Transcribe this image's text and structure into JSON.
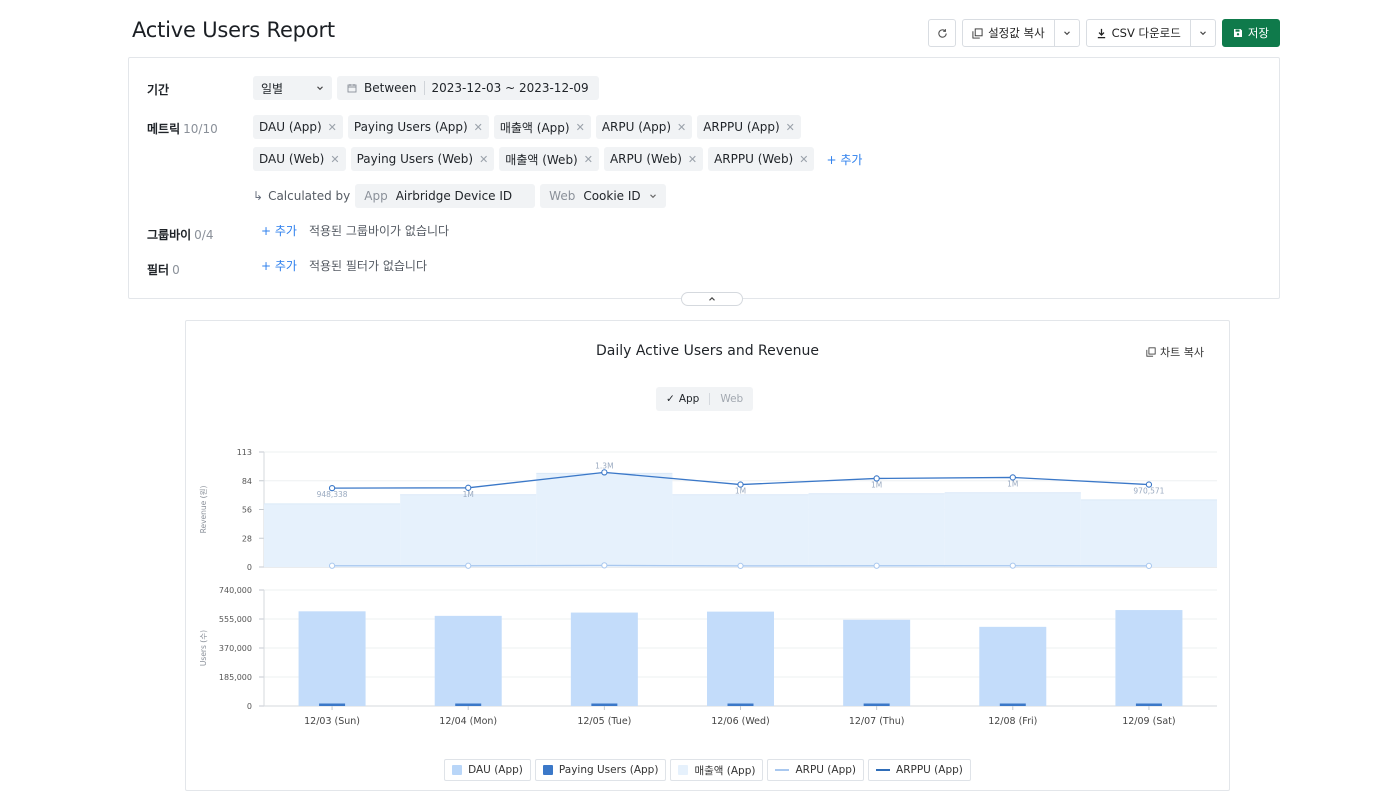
{
  "page": {
    "title": "Active Users Report"
  },
  "toolbar": {
    "refresh_icon": "refresh-icon",
    "copy_settings_label": "설정값 복사",
    "csv_label": "CSV 다운로드",
    "save_label": "저장",
    "save_color": "#0f7a4b"
  },
  "config": {
    "period": {
      "label": "기간",
      "granularity": "일별",
      "range_mode": "Between",
      "range": "2023-12-03 ~ 2023-12-09"
    },
    "metrics": {
      "label": "메트릭",
      "count": "10/10",
      "row1": [
        "DAU (App)",
        "Paying Users (App)",
        "매출액 (App)",
        "ARPU (App)",
        "ARPPU (App)"
      ],
      "row2": [
        "DAU (Web)",
        "Paying Users (Web)",
        "매출액 (Web)",
        "ARPU (Web)",
        "ARPPU (Web)"
      ],
      "add_label": "+ 추가",
      "calculated_by_label": "Calculated by",
      "app_key": "App",
      "app_value": "Airbridge Device ID",
      "web_key": "Web",
      "web_value": "Cookie ID"
    },
    "groupby": {
      "label": "그룹바이",
      "count": "0/4",
      "add_label": "+ 추가",
      "empty_text": "적용된 그룹바이가 없습니다"
    },
    "filter": {
      "label": "필터",
      "count": "0",
      "add_label": "+ 추가",
      "empty_text": "적용된 필터가 없습니다"
    }
  },
  "chart_card": {
    "copy_label": "차트 복사",
    "toggle": {
      "on": "App",
      "off": "Web"
    }
  },
  "chart_data": {
    "type": "bar",
    "title": "Daily Active Users and Revenue",
    "categories": [
      "12/03 (Sun)",
      "12/04 (Mon)",
      "12/05 (Tue)",
      "12/06 (Wed)",
      "12/07 (Thu)",
      "12/08 (Fri)",
      "12/09 (Sat)"
    ],
    "top_panel": {
      "ylabel": "Revenue (원)",
      "ylim": [
        0,
        113
      ],
      "yticks": [
        "0",
        "28",
        "56",
        "84",
        "113"
      ],
      "series": [
        {
          "name": "매출액 (App)",
          "kind": "area-bar",
          "color": "#e6f1fc",
          "values": [
            62,
            71,
            92,
            71,
            72,
            73,
            66
          ]
        },
        {
          "name": "ARPPU (App)",
          "kind": "line",
          "color": "#3b78c8",
          "values": [
            77.5,
            77.8,
            93,
            81,
            87,
            88,
            81
          ],
          "labels": [
            "948,338",
            "1M",
            "1.3M",
            "1M",
            "1M",
            "1M",
            "970,571"
          ]
        },
        {
          "name": "ARPU (App)",
          "kind": "line",
          "color": "#a9c8ef",
          "values": [
            1.2,
            1.2,
            1.6,
            1.1,
            1.2,
            1.3,
            1.1
          ]
        }
      ]
    },
    "bottom_panel": {
      "ylabel": "Users (수)",
      "ylim": [
        0,
        740000
      ],
      "yticks": [
        "0",
        "185,000",
        "370,000",
        "555,000",
        "740,000"
      ],
      "series": [
        {
          "name": "DAU (App)",
          "kind": "bar",
          "color": "#c3dcfa",
          "values": [
            604000,
            575000,
            596000,
            602000,
            550000,
            505000,
            612000
          ]
        },
        {
          "name": "Paying Users (App)",
          "kind": "bar",
          "color": "#3b78c8",
          "values": [
            12000,
            12000,
            15000,
            12000,
            11000,
            11000,
            11000
          ]
        }
      ]
    },
    "legend": [
      {
        "name": "DAU (App)",
        "swatch": "box",
        "color": "#b9d6f8"
      },
      {
        "name": "Paying Users (App)",
        "swatch": "box",
        "color": "#3b78c8"
      },
      {
        "name": "매출액 (App)",
        "swatch": "box",
        "color": "#e6f1fc"
      },
      {
        "name": "ARPU (App)",
        "swatch": "line",
        "color": "#a9c8ef"
      },
      {
        "name": "ARPPU (App)",
        "swatch": "line",
        "color": "#2f6db8"
      }
    ],
    "grid": true,
    "legend_position": "bottom-center"
  }
}
